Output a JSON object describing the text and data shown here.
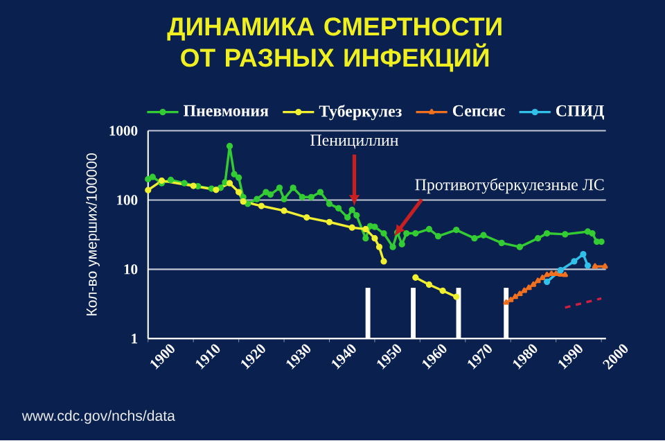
{
  "chart_data": {
    "type": "line",
    "title": "ДИНАМИКА СМЕРТНОСТИ ОТ РАЗНЫХ ИНФЕКЦИЙ",
    "ylabel": "Кол-во умерших/100000",
    "series": [
      {
        "type": "bar",
        "color": "#ffffff",
        "x": [
          1948.5,
          1958.5,
          1968.5,
          1979
        ],
        "values": [
          5.4,
          5.4,
          5.4,
          5.4
        ]
      },
      {
        "name": "Пневмония",
        "color": "#33cc33",
        "marker": "circle",
        "x": [
          1900,
          1901,
          1903,
          1905,
          1908,
          1911,
          1914,
          1916,
          1917,
          1918,
          1919,
          1920,
          1921,
          1922,
          1924,
          1926,
          1927,
          1929,
          1930,
          1932,
          1934,
          1936,
          1938,
          1940,
          1942,
          1944,
          1945,
          1946,
          1948,
          1949,
          1950,
          1952,
          1954,
          1955,
          1956,
          1957,
          1959,
          1962,
          1964,
          1968,
          1972,
          1974,
          1978,
          1982,
          1986,
          1988,
          1992,
          1997,
          1998,
          1999,
          2000
        ],
        "values": [
          200,
          215,
          175,
          195,
          175,
          158,
          146,
          150,
          180,
          600,
          236,
          210,
          110,
          88,
          103,
          130,
          120,
          150,
          103,
          150,
          110,
          110,
          130,
          88,
          76,
          56,
          72,
          60,
          28,
          42,
          41,
          33,
          21,
          34,
          23,
          33,
          33,
          38,
          30,
          37,
          28,
          31,
          24,
          21,
          28,
          33,
          32,
          35,
          33,
          25,
          25
        ]
      },
      {
        "name": "Туберкулез",
        "color": "#f0f030",
        "marker": "circle",
        "x": [
          1900,
          1903,
          1910,
          1915,
          1918,
          1920,
          1921,
          1925,
          1930,
          1935,
          1940,
          1945,
          1948,
          1950,
          1951,
          1952,
          1956,
          1959,
          1962,
          1965,
          1968
        ],
        "values": [
          139,
          190,
          160,
          140,
          175,
          130,
          95,
          82,
          70,
          56,
          48,
          40,
          38,
          28,
          21,
          13,
          null,
          7.6,
          6,
          4.9,
          4.0
        ]
      },
      {
        "name": "Сепсис",
        "color": "#f07020",
        "marker": "triangle",
        "x": [
          1979,
          1980,
          1981,
          1982,
          1983,
          1984,
          1985,
          1986,
          1987,
          1988,
          1989,
          1990,
          1991,
          1992,
          1995,
          1998.6,
          2000.8
        ],
        "values": [
          3.3,
          3.6,
          4.0,
          4.4,
          4.9,
          5.4,
          6.0,
          6.8,
          7.5,
          8.3,
          8.6,
          8.6,
          8.4,
          8.3,
          null,
          11,
          11
        ]
      },
      {
        "name": "СПИД",
        "color": "#30c0e8",
        "marker": "circle",
        "x": [
          1988,
          1991,
          1994,
          1996,
          1997
        ],
        "values": [
          6.6,
          9.7,
          13,
          16.5,
          11.3
        ]
      },
      {
        "color": "#d02040",
        "marker": "none",
        "line_style": "dashed",
        "x": [
          1992,
          2000
        ],
        "values": [
          2.8,
          3.8
        ]
      }
    ],
    "annotations": [
      {
        "text": "Пенициллин",
        "x": 1945.5,
        "y": 82
      },
      {
        "text": "Противотуберкулезные ЛС",
        "x": 1954.3,
        "y": 30
      },
      "www.cdc.gov/nchs/data"
    ],
    "xlim": [
      1900,
      2001
    ],
    "ylim": [
      1,
      1000
    ],
    "xticks": [
      1900,
      1910,
      1920,
      1930,
      1940,
      1950,
      1960,
      1970,
      1980,
      1990,
      2000
    ],
    "yticks": [
      1,
      10,
      100,
      1000
    ],
    "log": "y",
    "grid": "y",
    "legend": "top"
  }
}
